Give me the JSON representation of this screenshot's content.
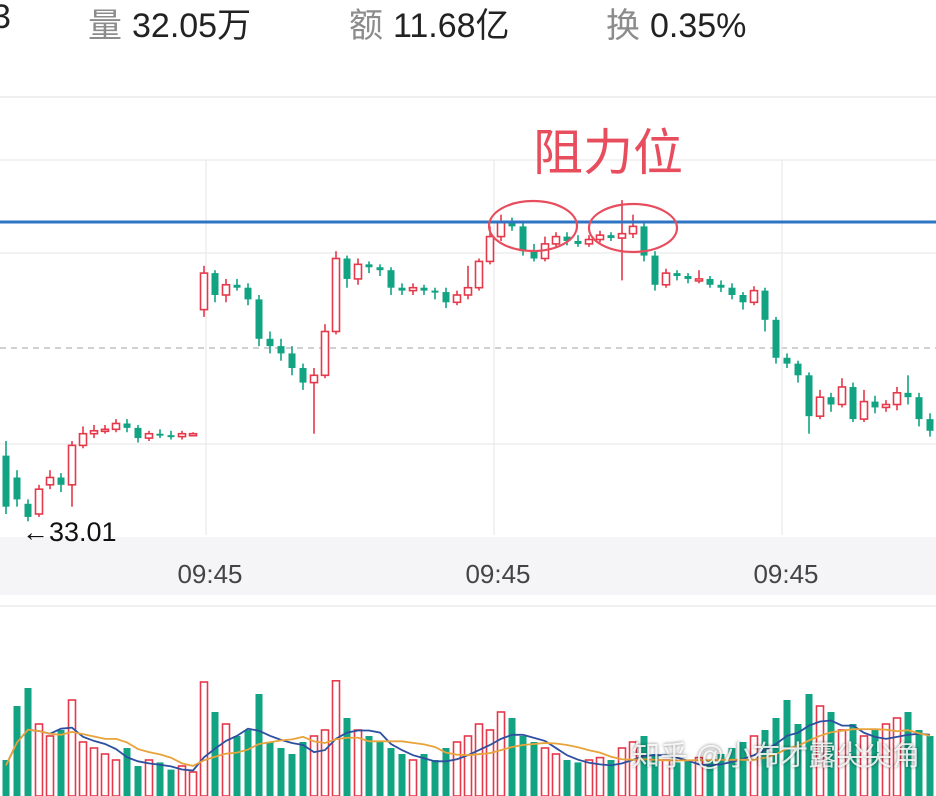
{
  "header": {
    "partial_value": "3",
    "volume": {
      "label": "量",
      "value": "32.05万"
    },
    "amount": {
      "label": "额",
      "value": "11.68亿"
    },
    "turnover": {
      "label": "换",
      "value": "0.35%"
    }
  },
  "chart_data": [
    {
      "type": "candlestick",
      "title": "",
      "annotation": "阻力位",
      "min_label": "←33.01",
      "x_tick_labels": [
        "09:45",
        "09:45",
        "09:45"
      ],
      "grid": true,
      "colors": {
        "up": "#e5384a",
        "down": "#12a383",
        "resistance": "#2d74c4",
        "circle": "#e84d5e"
      },
      "candles": [
        [
          0,
          0.45,
          0.1,
          0.55,
          0.05
        ],
        [
          1,
          0.3,
          0.15,
          0.35,
          0.1
        ],
        [
          2,
          0.12,
          0.03,
          0.15,
          0.0
        ],
        [
          3,
          0.05,
          0.22,
          0.25,
          0.03
        ],
        [
          4,
          0.25,
          0.3,
          0.35,
          0.22
        ],
        [
          5,
          0.3,
          0.25,
          0.33,
          0.2
        ],
        [
          6,
          0.25,
          0.52,
          0.55,
          0.1
        ],
        [
          7,
          0.52,
          0.6,
          0.65,
          0.5
        ],
        [
          8,
          0.6,
          0.62,
          0.66,
          0.57
        ],
        [
          9,
          0.62,
          0.63,
          0.66,
          0.6
        ],
        [
          10,
          0.63,
          0.67,
          0.7,
          0.61
        ],
        [
          11,
          0.67,
          0.64,
          0.7,
          0.61
        ],
        [
          12,
          0.64,
          0.57,
          0.66,
          0.54
        ],
        [
          13,
          0.57,
          0.6,
          0.62,
          0.55
        ],
        [
          14,
          0.6,
          0.59,
          0.63,
          0.57
        ],
        [
          15,
          0.59,
          0.58,
          0.62,
          0.56
        ],
        [
          16,
          0.58,
          0.6,
          0.62,
          0.56
        ],
        [
          17,
          0.6,
          0.6,
          0.61,
          0.59
        ],
        [
          18,
          1.45,
          1.7,
          1.75,
          1.4
        ],
        [
          19,
          1.7,
          1.55,
          1.72,
          1.5
        ],
        [
          20,
          1.55,
          1.62,
          1.66,
          1.5
        ],
        [
          21,
          1.62,
          1.6,
          1.66,
          1.58
        ],
        [
          22,
          1.6,
          1.52,
          1.63,
          1.48
        ],
        [
          23,
          1.52,
          1.25,
          1.55,
          1.2
        ],
        [
          24,
          1.25,
          1.2,
          1.3,
          1.15
        ],
        [
          25,
          1.2,
          1.15,
          1.25,
          1.1
        ],
        [
          26,
          1.15,
          1.05,
          1.2,
          1.0
        ],
        [
          27,
          1.05,
          0.95,
          1.08,
          0.9
        ],
        [
          28,
          0.95,
          1.0,
          1.05,
          0.6
        ],
        [
          29,
          1.0,
          1.3,
          1.35,
          0.98
        ],
        [
          30,
          1.3,
          1.8,
          1.85,
          1.28
        ],
        [
          31,
          1.8,
          1.66,
          1.82,
          1.6
        ],
        [
          32,
          1.66,
          1.76,
          1.8,
          1.62
        ],
        [
          33,
          1.76,
          1.74,
          1.78,
          1.7
        ],
        [
          34,
          1.74,
          1.72,
          1.76,
          1.68
        ],
        [
          35,
          1.72,
          1.6,
          1.74,
          1.55
        ],
        [
          36,
          1.6,
          1.58,
          1.63,
          1.55
        ],
        [
          37,
          1.58,
          1.6,
          1.63,
          1.55
        ],
        [
          38,
          1.6,
          1.58,
          1.62,
          1.55
        ],
        [
          39,
          1.58,
          1.57,
          1.6,
          1.52
        ],
        [
          40,
          1.57,
          1.5,
          1.6,
          1.46
        ],
        [
          41,
          1.5,
          1.55,
          1.58,
          1.48
        ],
        [
          42,
          1.55,
          1.6,
          1.75,
          1.52
        ],
        [
          43,
          1.6,
          1.78,
          1.8,
          1.58
        ],
        [
          44,
          1.78,
          1.95,
          2.02,
          1.76
        ],
        [
          45,
          1.95,
          2.05,
          2.1,
          1.92
        ],
        [
          46,
          2.05,
          2.02,
          2.08,
          1.99
        ],
        [
          47,
          2.02,
          1.85,
          2.05,
          1.82
        ],
        [
          48,
          1.85,
          1.8,
          1.9,
          1.78
        ],
        [
          49,
          1.8,
          1.9,
          1.95,
          1.78
        ],
        [
          50,
          1.9,
          1.95,
          1.98,
          1.88
        ],
        [
          51,
          1.95,
          1.92,
          1.98,
          1.89
        ],
        [
          52,
          1.92,
          1.9,
          1.96,
          1.88
        ],
        [
          53,
          1.9,
          1.93,
          1.96,
          1.88
        ],
        [
          54,
          1.93,
          1.96,
          1.99,
          1.91
        ],
        [
          55,
          1.96,
          1.94,
          1.98,
          1.92
        ],
        [
          56,
          1.94,
          1.97,
          2.2,
          1.65
        ],
        [
          57,
          1.97,
          2.02,
          2.1,
          1.94
        ],
        [
          58,
          2.02,
          1.82,
          2.05,
          1.78
        ],
        [
          59,
          1.82,
          1.62,
          1.85,
          1.58
        ],
        [
          60,
          1.62,
          1.7,
          1.73,
          1.6
        ],
        [
          61,
          1.7,
          1.68,
          1.72,
          1.65
        ],
        [
          62,
          1.68,
          1.66,
          1.7,
          1.63
        ],
        [
          63,
          1.66,
          1.66,
          1.72,
          1.63
        ],
        [
          64,
          1.66,
          1.62,
          1.68,
          1.6
        ],
        [
          65,
          1.62,
          1.6,
          1.65,
          1.57
        ],
        [
          66,
          1.6,
          1.55,
          1.63,
          1.52
        ],
        [
          67,
          1.55,
          1.5,
          1.57,
          1.45
        ],
        [
          68,
          1.5,
          1.58,
          1.61,
          1.48
        ],
        [
          69,
          1.58,
          1.38,
          1.6,
          1.3
        ],
        [
          70,
          1.38,
          1.12,
          1.4,
          1.08
        ],
        [
          71,
          1.12,
          1.08,
          1.15,
          1.05
        ],
        [
          72,
          1.08,
          1.0,
          1.1,
          0.95
        ],
        [
          73,
          1.0,
          0.72,
          1.02,
          0.6
        ],
        [
          74,
          0.72,
          0.85,
          0.9,
          0.7
        ],
        [
          75,
          0.85,
          0.8,
          0.88,
          0.75
        ],
        [
          76,
          0.8,
          0.92,
          0.98,
          0.78
        ],
        [
          77,
          0.92,
          0.7,
          0.95,
          0.68
        ],
        [
          78,
          0.7,
          0.82,
          0.9,
          0.68
        ],
        [
          79,
          0.82,
          0.78,
          0.86,
          0.74
        ],
        [
          80,
          0.78,
          0.8,
          0.83,
          0.75
        ],
        [
          81,
          0.8,
          0.88,
          0.92,
          0.76
        ],
        [
          82,
          0.88,
          0.85,
          1.0,
          0.8
        ],
        [
          83,
          0.85,
          0.7,
          0.88,
          0.65
        ],
        [
          84,
          0.7,
          0.62,
          0.74,
          0.58
        ]
      ]
    },
    {
      "type": "bar",
      "title": "",
      "volumes": [
        0.3,
        0.75,
        0.9,
        0.6,
        0.5,
        0.55,
        0.8,
        0.45,
        0.4,
        0.35,
        0.3,
        0.4,
        0.25,
        0.3,
        0.28,
        0.22,
        0.25,
        0.2,
        0.95,
        0.7,
        0.6,
        0.5,
        0.55,
        0.85,
        0.45,
        0.4,
        0.35,
        0.45,
        0.5,
        0.55,
        0.96,
        0.65,
        0.55,
        0.5,
        0.45,
        0.4,
        0.35,
        0.3,
        0.35,
        0.3,
        0.4,
        0.45,
        0.5,
        0.6,
        0.55,
        0.7,
        0.65,
        0.5,
        0.45,
        0.4,
        0.35,
        0.3,
        0.28,
        0.3,
        0.32,
        0.3,
        0.4,
        0.45,
        0.5,
        0.35,
        0.3,
        0.28,
        0.3,
        0.32,
        0.3,
        0.35,
        0.4,
        0.45,
        0.5,
        0.55,
        0.65,
        0.8,
        0.6,
        0.85,
        0.75,
        0.7,
        0.55,
        0.6,
        0.5,
        0.55,
        0.6,
        0.65,
        0.7,
        0.55,
        0.5
      ]
    }
  ],
  "watermark": "知乎 @小布才露尖尖角"
}
